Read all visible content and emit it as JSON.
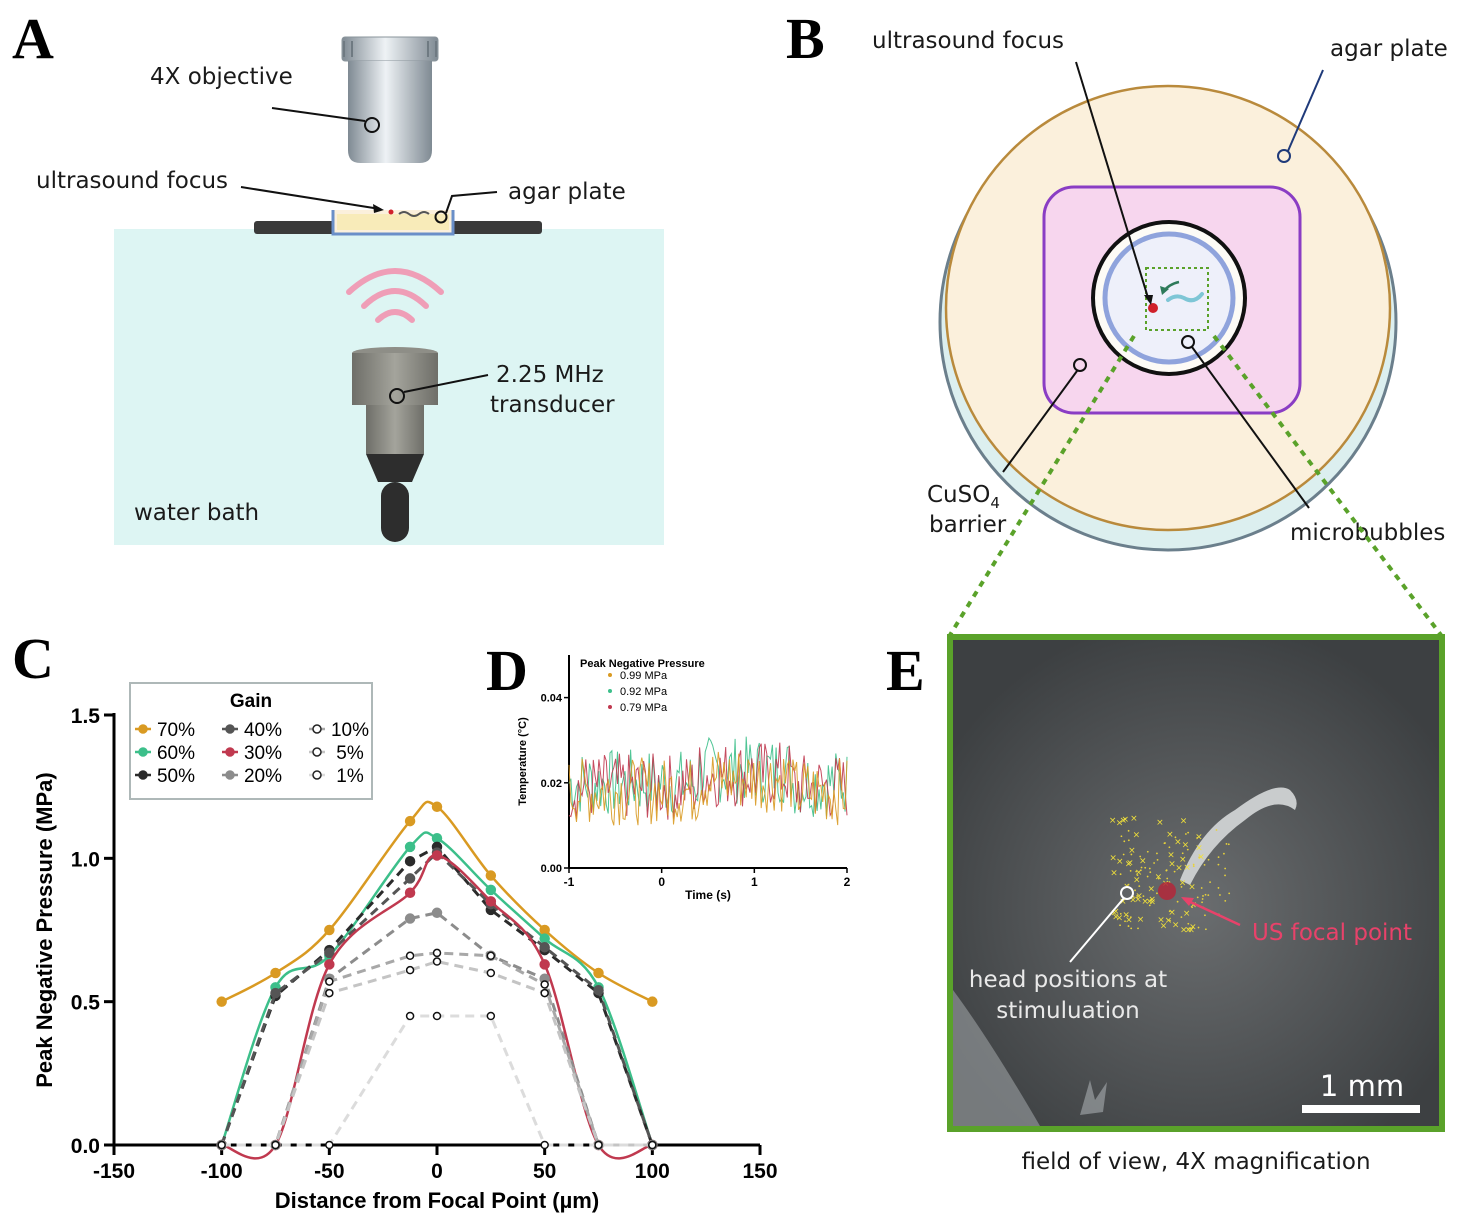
{
  "panels": {
    "A": {
      "letter": "A",
      "labels": {
        "objective": "4X objective",
        "focus": "ultrasound focus",
        "agar": "agar plate",
        "transducer_l1": "2.25 MHz",
        "transducer_l2": "transducer",
        "water": "water bath"
      }
    },
    "B": {
      "letter": "B",
      "labels": {
        "focus": "ultrasound focus",
        "agar": "agar plate",
        "cuso4_main": "CuSO",
        "cuso4_sub": "4",
        "barrier": "barrier",
        "microbubbles": "microbubbles"
      }
    },
    "C": {
      "letter": "C"
    },
    "D": {
      "letter": "D"
    },
    "E": {
      "letter": "E",
      "labels": {
        "head_l1": "head positions at",
        "head_l2": "stimuluation",
        "us_focal": "US focal point",
        "scalebar": "1 mm",
        "caption": "field of view, 4X magnification"
      }
    }
  },
  "colors": {
    "g70": "#d99a22",
    "g60": "#3cbf8a",
    "g50": "#2b2b2b",
    "g40": "#555555",
    "g30": "#c0394f",
    "g20": "#8c8c8c",
    "g10": "#a8a8a8",
    "g5": "#c4c4c4",
    "g1": "#dcdcdc",
    "water": "#ddf5f3",
    "agar": "#fbf0dc",
    "purple": "#8a3dc4",
    "pink": "#f7d6ee",
    "green_frame": "#5aa22a",
    "us_red": "#e8426a"
  },
  "chart_data": [
    {
      "id": "C",
      "type": "line",
      "title": "",
      "xlabel": "Distance from Focal Point (µm)",
      "ylabel": "Peak Negative Pressure (MPa)",
      "xlim": [
        -150,
        150
      ],
      "ylim": [
        0,
        1.5
      ],
      "xticks": [
        "-150",
        "-100",
        "-50",
        "0",
        "50",
        "100",
        "150"
      ],
      "yticks": [
        "0.0",
        "0.5",
        "1.0",
        "1.5"
      ],
      "legend": {
        "title": "Gain",
        "position": "top-left"
      },
      "series": [
        {
          "name": "70%",
          "x": [
            -100,
            -75,
            -50,
            -12.5,
            0,
            25,
            50,
            75,
            100
          ],
          "values": [
            0.5,
            0.6,
            0.75,
            1.13,
            1.18,
            0.94,
            0.75,
            0.6,
            0.5
          ]
        },
        {
          "name": "60%",
          "x": [
            -100,
            -75,
            -50,
            -12.5,
            0,
            25,
            50,
            75,
            100
          ],
          "values": [
            0.0,
            0.55,
            0.66,
            1.04,
            1.07,
            0.89,
            0.72,
            0.55,
            0.0
          ]
        },
        {
          "name": "50%",
          "x": [
            -100,
            -75,
            -50,
            -12.5,
            0,
            25,
            50,
            75,
            100
          ],
          "values": [
            0.0,
            0.52,
            0.68,
            0.99,
            1.04,
            0.82,
            0.68,
            0.53,
            0.0
          ]
        },
        {
          "name": "40%",
          "x": [
            -100,
            -75,
            -50,
            -12.5,
            0,
            25,
            50,
            75,
            100
          ],
          "values": [
            0.0,
            0.53,
            0.67,
            0.93,
            1.02,
            0.84,
            0.69,
            0.54,
            0.0
          ]
        },
        {
          "name": "30%",
          "x": [
            -100,
            -75,
            -50,
            -12.5,
            0,
            25,
            50,
            75,
            100
          ],
          "values": [
            0.0,
            0.0,
            0.63,
            0.88,
            1.01,
            0.85,
            0.63,
            0.0,
            0.0
          ]
        },
        {
          "name": "20%",
          "x": [
            -100,
            -75,
            -50,
            -12.5,
            0,
            25,
            50,
            75,
            100
          ],
          "values": [
            0.0,
            0.0,
            0.58,
            0.79,
            0.81,
            0.66,
            0.58,
            0.0,
            0.0
          ]
        },
        {
          "name": "10%",
          "x": [
            -100,
            -75,
            -50,
            -12.5,
            0,
            25,
            50,
            75,
            100
          ],
          "values": [
            0.0,
            0.0,
            0.57,
            0.66,
            0.67,
            0.66,
            0.56,
            0.0,
            0.0
          ]
        },
        {
          "name": "5%",
          "x": [
            -100,
            -75,
            -50,
            -12.5,
            0,
            25,
            50,
            75,
            100
          ],
          "values": [
            0.0,
            0.0,
            0.53,
            0.61,
            0.64,
            0.6,
            0.53,
            0.0,
            0.0
          ]
        },
        {
          "name": "1%",
          "x": [
            -100,
            -75,
            -50,
            -12.5,
            0,
            25,
            50,
            75,
            100
          ],
          "values": [
            0.0,
            0.0,
            0.0,
            0.45,
            0.45,
            0.45,
            0.0,
            0.0,
            0.0
          ]
        }
      ]
    },
    {
      "id": "D",
      "type": "line",
      "title": "",
      "xlabel": "Time (s)",
      "ylabel": "Temperature (°C)",
      "xlim": [
        -1,
        2
      ],
      "ylim": [
        0.0,
        0.05
      ],
      "xticks": [
        "-1",
        "0",
        "1",
        "2"
      ],
      "yticks": [
        "0.00",
        "0.02",
        "0.04"
      ],
      "legend": {
        "title": "Peak Negative Pressure",
        "position": "top-left"
      },
      "series": [
        {
          "name": "0.99 MPa",
          "mean": 0.018,
          "range": [
            0.002,
            0.031
          ]
        },
        {
          "name": "0.92 MPa",
          "mean": 0.02,
          "range": [
            0.01,
            0.033
          ]
        },
        {
          "name": "0.79 MPa",
          "mean": 0.019,
          "range": [
            0.008,
            0.035
          ]
        }
      ]
    }
  ]
}
